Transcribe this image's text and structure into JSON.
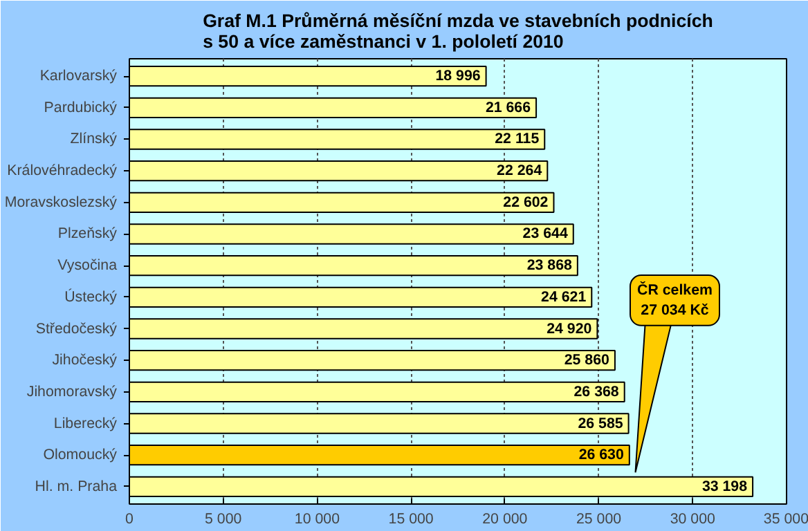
{
  "chart_data": {
    "type": "bar",
    "orientation": "horizontal",
    "title": "Graf M.1 Průměrná měsíční mzda ve stavebních podnicích\ns 50 a více zaměstnanci v 1. pololetí 2010",
    "categories": [
      "Karlovarský",
      "Pardubický",
      "Zlínský",
      "Královéhradecký",
      "Moravskoslezský",
      "Plzeňský",
      "Vysočina",
      "Ústecký",
      "Středočeský",
      "Jihočeský",
      "Jihomoravský",
      "Liberecký",
      "Olomoucký",
      "Hl. m. Praha"
    ],
    "values": [
      18996,
      21666,
      22115,
      22264,
      22602,
      23644,
      23868,
      24621,
      24920,
      25860,
      26368,
      26585,
      26630,
      33198
    ],
    "value_labels": [
      "18 996",
      "21 666",
      "22 115",
      "22 264",
      "22 602",
      "23 644",
      "23 868",
      "24 621",
      "24 920",
      "25 860",
      "26 368",
      "26 585",
      "26 630",
      "33 198"
    ],
    "colors": [
      "#ffff99",
      "#ffff99",
      "#ffff99",
      "#ffff99",
      "#ffff99",
      "#ffff99",
      "#ffff99",
      "#ffff99",
      "#ffff99",
      "#ffff99",
      "#ffff99",
      "#ffff99",
      "#ffcc00",
      "#ffff99"
    ],
    "xlim": [
      0,
      35000
    ],
    "xticks": [
      0,
      {
        "value": 5000,
        "label": "5 000"
      },
      {
        "value": 10000,
        "label": "10 000"
      },
      {
        "value": 15000,
        "label": "15 000"
      },
      {
        "value": 20000,
        "label": "20 000"
      },
      {
        "value": 25000,
        "label": "25 000"
      },
      {
        "value": 30000,
        "label": "30 000"
      },
      {
        "value": 35000,
        "label": "35 000"
      }
    ],
    "grid": "x",
    "annotations": [
      "ČR celkem\n27 034 Kč"
    ]
  }
}
